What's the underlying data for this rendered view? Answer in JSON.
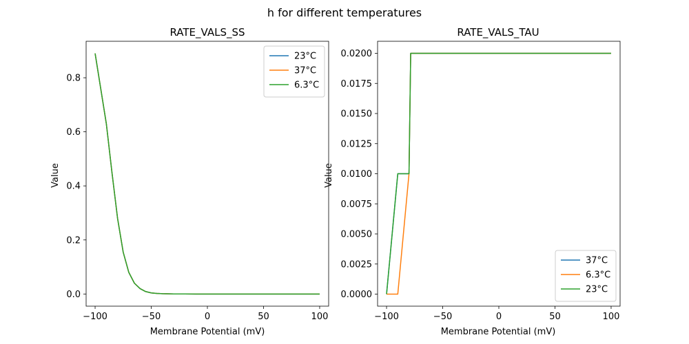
{
  "figure": {
    "suptitle": "h for different temperatures"
  },
  "chart_data": [
    {
      "type": "line",
      "title": "RATE_VALS_SS",
      "xlabel": "Membrane Potential (mV)",
      "ylabel": "Value",
      "xlim": [
        -108,
        108
      ],
      "ylim": [
        -0.045,
        0.935
      ],
      "xticks": [
        -100,
        -50,
        0,
        50,
        100
      ],
      "xtick_labels": [
        "−100",
        "−50",
        "0",
        "50",
        "100"
      ],
      "yticks": [
        0.0,
        0.2,
        0.4,
        0.6,
        0.8
      ],
      "ytick_labels": [
        "0.0",
        "0.2",
        "0.4",
        "0.6",
        "0.8"
      ],
      "grid": false,
      "legend_position": "top-right",
      "series": [
        {
          "name": "23°C",
          "color": "#1f77b4",
          "x": [
            -100,
            -95,
            -90,
            -85,
            -80,
            -75,
            -70,
            -65,
            -60,
            -55,
            -50,
            -45,
            -40,
            -30,
            -20,
            -10,
            0,
            20,
            40,
            60,
            80,
            100
          ],
          "y": [
            0.89,
            0.76,
            0.63,
            0.45,
            0.28,
            0.155,
            0.08,
            0.04,
            0.02,
            0.009,
            0.004,
            0.002,
            0.001,
            0.0003,
            0.0001,
            0,
            0,
            0,
            0,
            0,
            0,
            0
          ]
        },
        {
          "name": "37°C",
          "color": "#ff7f0e",
          "x": [
            -100,
            -95,
            -90,
            -85,
            -80,
            -75,
            -70,
            -65,
            -60,
            -55,
            -50,
            -45,
            -40,
            -30,
            -20,
            -10,
            0,
            20,
            40,
            60,
            80,
            100
          ],
          "y": [
            0.89,
            0.76,
            0.63,
            0.45,
            0.28,
            0.155,
            0.08,
            0.04,
            0.02,
            0.009,
            0.004,
            0.002,
            0.001,
            0.0003,
            0.0001,
            0,
            0,
            0,
            0,
            0,
            0,
            0
          ]
        },
        {
          "name": "6.3°C",
          "color": "#2ca02c",
          "x": [
            -100,
            -95,
            -90,
            -85,
            -80,
            -75,
            -70,
            -65,
            -60,
            -55,
            -50,
            -45,
            -40,
            -30,
            -20,
            -10,
            0,
            20,
            40,
            60,
            80,
            100
          ],
          "y": [
            0.89,
            0.76,
            0.63,
            0.45,
            0.28,
            0.155,
            0.08,
            0.04,
            0.02,
            0.009,
            0.004,
            0.002,
            0.001,
            0.0003,
            0.0001,
            0,
            0,
            0,
            0,
            0,
            0,
            0
          ]
        }
      ]
    },
    {
      "type": "line",
      "title": "RATE_VALS_TAU",
      "xlabel": "Membrane Potential (mV)",
      "ylabel": "Value",
      "xlim": [
        -108,
        108
      ],
      "ylim": [
        -0.001,
        0.021
      ],
      "xticks": [
        -100,
        -50,
        0,
        50,
        100
      ],
      "xtick_labels": [
        "−100",
        "−50",
        "0",
        "50",
        "100"
      ],
      "yticks": [
        0.0,
        0.0025,
        0.005,
        0.0075,
        0.01,
        0.0125,
        0.015,
        0.0175,
        0.02
      ],
      "ytick_labels": [
        "0.0000",
        "0.0025",
        "0.0050",
        "0.0075",
        "0.0100",
        "0.0125",
        "0.0150",
        "0.0175",
        "0.0200"
      ],
      "grid": false,
      "legend_position": "bottom-right",
      "series": [
        {
          "name": "37°C",
          "color": "#1f77b4",
          "x": [
            -100,
            -90,
            -80,
            -78.5,
            100
          ],
          "y": [
            0.0,
            0.01,
            0.01,
            0.02,
            0.02
          ]
        },
        {
          "name": "6.3°C",
          "color": "#ff7f0e",
          "x": [
            -100,
            -90,
            -80,
            -78.5,
            100
          ],
          "y": [
            0.0,
            0.0,
            0.01,
            0.02,
            0.02
          ]
        },
        {
          "name": "23°C",
          "color": "#2ca02c",
          "x": [
            -100,
            -90,
            -80,
            -78.5,
            100
          ],
          "y": [
            0.0,
            0.01,
            0.01,
            0.02,
            0.02
          ]
        }
      ]
    }
  ]
}
